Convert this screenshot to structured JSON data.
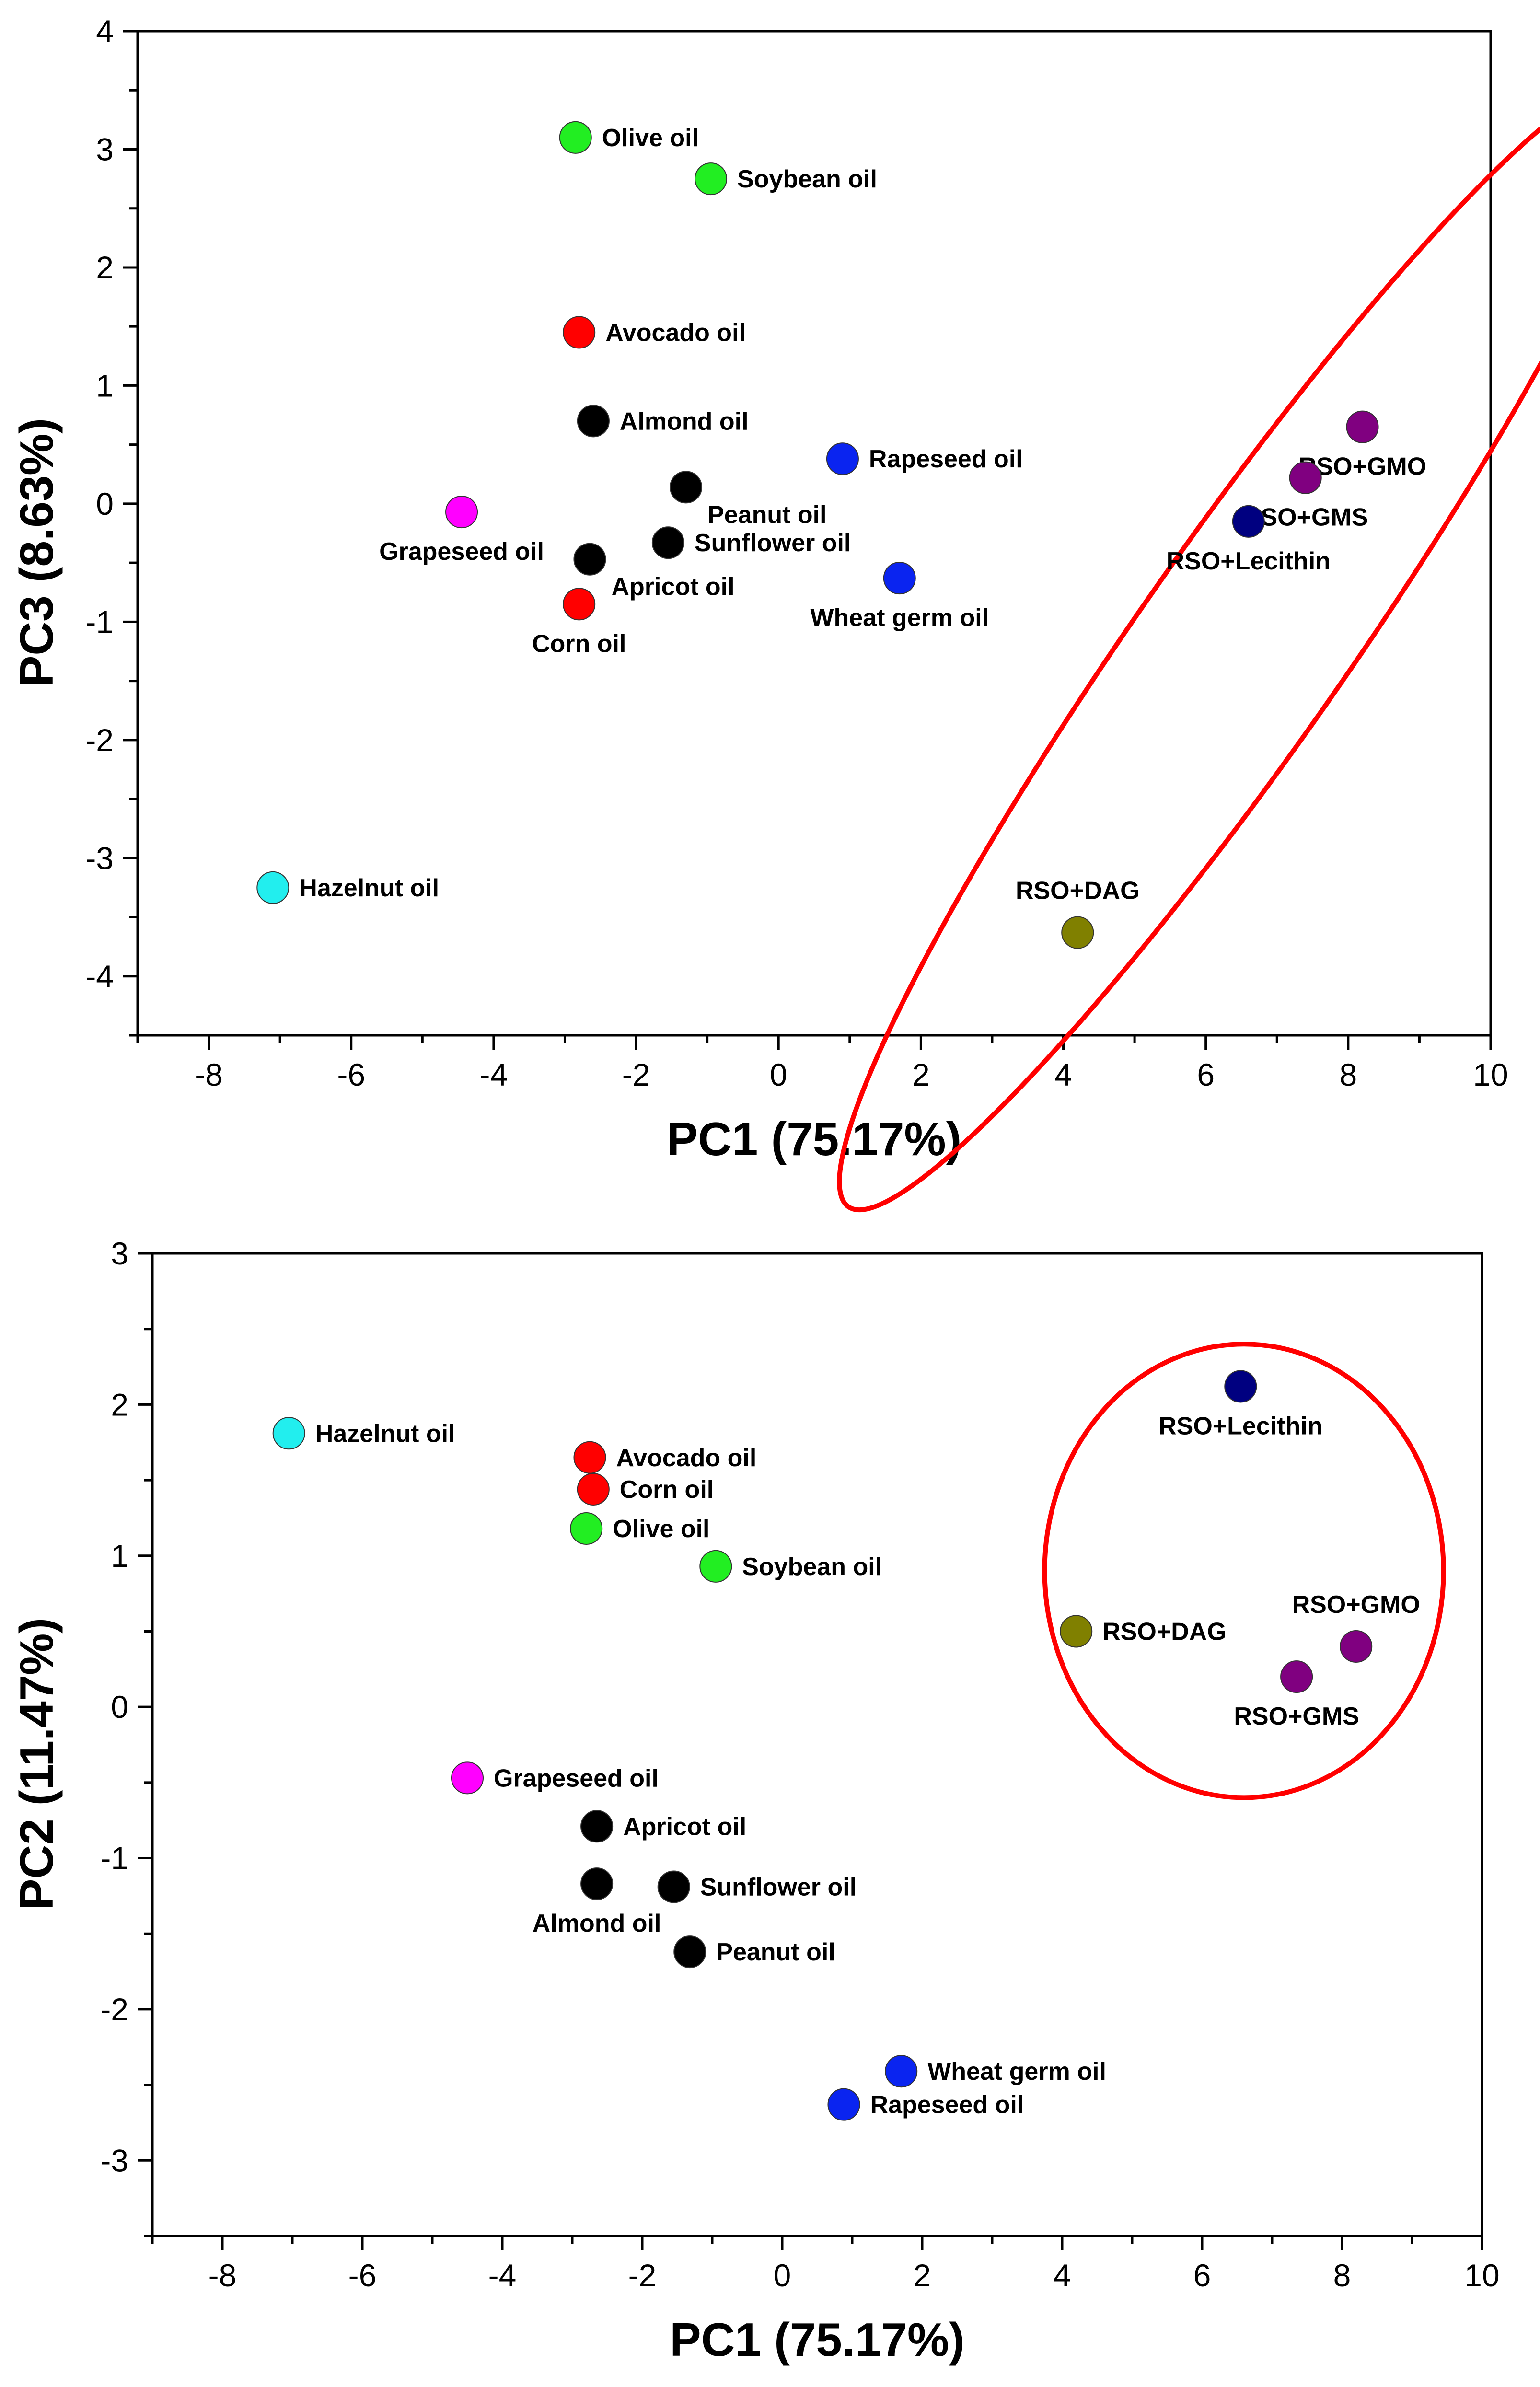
{
  "chart_data": [
    {
      "type": "scatter",
      "id": "pc1-pc3",
      "title": "",
      "xlabel": "PC1 (75.17%)",
      "ylabel": "PC3 (8.63%)",
      "xlim": [
        -9,
        10
      ],
      "ylim": [
        -4.5,
        4
      ],
      "xticks": [
        -8,
        -6,
        -4,
        -2,
        0,
        2,
        4,
        6,
        8,
        10
      ],
      "yticks": [
        4,
        3,
        2,
        1,
        0,
        -1,
        -2,
        -3,
        -4
      ],
      "grid": false,
      "points": [
        {
          "label": "Olive oil",
          "x": -2.85,
          "y": 3.1,
          "color": "#22ee22",
          "label_pos": "right"
        },
        {
          "label": "Soybean oil",
          "x": -0.95,
          "y": 2.75,
          "color": "#22ee22",
          "label_pos": "right"
        },
        {
          "label": "Avocado oil",
          "x": -2.8,
          "y": 1.45,
          "color": "#ff0000",
          "label_pos": "right"
        },
        {
          "label": "Almond oil",
          "x": -2.6,
          "y": 0.7,
          "color": "#000000",
          "label_pos": "right"
        },
        {
          "label": "Rapeseed oil",
          "x": 0.9,
          "y": 0.38,
          "color": "#0a24f0",
          "label_pos": "right"
        },
        {
          "label": "Peanut oil",
          "x": -1.3,
          "y": 0.14,
          "color": "#000000",
          "label_pos": "below-right"
        },
        {
          "label": "Grapeseed oil",
          "x": -4.45,
          "y": -0.07,
          "color": "#ff00ff",
          "label_pos": "below"
        },
        {
          "label": "Sunflower oil",
          "x": -1.55,
          "y": -0.33,
          "color": "#000000",
          "label_pos": "right"
        },
        {
          "label": "Apricot oil",
          "x": -2.65,
          "y": -0.47,
          "color": "#000000",
          "label_pos": "below-right"
        },
        {
          "label": "Wheat germ oil",
          "x": 1.7,
          "y": -0.63,
          "color": "#0a24f0",
          "label_pos": "below"
        },
        {
          "label": "Corn oil",
          "x": -2.8,
          "y": -0.85,
          "color": "#ff0000",
          "label_pos": "below"
        },
        {
          "label": "Hazelnut oil",
          "x": -7.1,
          "y": -3.25,
          "color": "#22eeee",
          "label_pos": "right"
        },
        {
          "label": "RSO+DAG",
          "x": 4.2,
          "y": -3.63,
          "color": "#808000",
          "label_pos": "above"
        },
        {
          "label": "RSO+GMO",
          "x": 8.2,
          "y": 0.65,
          "color": "#800080",
          "label_pos": "below"
        },
        {
          "label": "RSO+GMS",
          "x": 7.4,
          "y": 0.22,
          "color": "#800080",
          "label_pos": "below"
        },
        {
          "label": "RSO+Lecithin",
          "x": 6.6,
          "y": -0.15,
          "color": "#000080",
          "label_pos": "below"
        }
      ],
      "ellipse": {
        "cx": 6.5,
        "cy": -1.2,
        "rx": 1.45,
        "ry": 5.8,
        "rotate_deg": 35,
        "color": "#ff0000"
      }
    },
    {
      "type": "scatter",
      "id": "pc1-pc2",
      "title": "",
      "xlabel": "PC1 (75.17%)",
      "ylabel": "PC2 (11.47%)",
      "xlim": [
        -9,
        10
      ],
      "ylim": [
        -3.5,
        3
      ],
      "xticks": [
        -8,
        -6,
        -4,
        -2,
        0,
        2,
        4,
        6,
        8,
        10
      ],
      "yticks": [
        3,
        2,
        1,
        0,
        -1,
        -2,
        -3
      ],
      "grid": false,
      "points": [
        {
          "label": "RSO+Lecithin",
          "x": 6.55,
          "y": 2.12,
          "color": "#000080",
          "label_pos": "below"
        },
        {
          "label": "Hazelnut oil",
          "x": -7.05,
          "y": 1.81,
          "color": "#22eeee",
          "label_pos": "right"
        },
        {
          "label": "Avocado oil",
          "x": -2.75,
          "y": 1.65,
          "color": "#ff0000",
          "label_pos": "right"
        },
        {
          "label": "Corn oil",
          "x": -2.7,
          "y": 1.44,
          "color": "#ff0000",
          "label_pos": "right"
        },
        {
          "label": "Olive oil",
          "x": -2.8,
          "y": 1.18,
          "color": "#22ee22",
          "label_pos": "right"
        },
        {
          "label": "Soybean oil",
          "x": -0.95,
          "y": 0.93,
          "color": "#22ee22",
          "label_pos": "right"
        },
        {
          "label": "RSO+DAG",
          "x": 4.2,
          "y": 0.5,
          "color": "#808000",
          "label_pos": "right"
        },
        {
          "label": "RSO+GMO",
          "x": 8.2,
          "y": 0.4,
          "color": "#800080",
          "label_pos": "above"
        },
        {
          "label": "RSO+GMS",
          "x": 7.35,
          "y": 0.2,
          "color": "#800080",
          "label_pos": "below"
        },
        {
          "label": "Grapeseed oil",
          "x": -4.5,
          "y": -0.47,
          "color": "#ff00ff",
          "label_pos": "right"
        },
        {
          "label": "Apricot oil",
          "x": -2.65,
          "y": -0.79,
          "color": "#000000",
          "label_pos": "right"
        },
        {
          "label": "Almond oil",
          "x": -2.65,
          "y": -1.17,
          "color": "#000000",
          "label_pos": "below"
        },
        {
          "label": "Sunflower oil",
          "x": -1.55,
          "y": -1.19,
          "color": "#000000",
          "label_pos": "right"
        },
        {
          "label": "Peanut oil",
          "x": -1.32,
          "y": -1.62,
          "color": "#000000",
          "label_pos": "right"
        },
        {
          "label": "Wheat germ oil",
          "x": 1.7,
          "y": -2.41,
          "color": "#0a24f0",
          "label_pos": "right"
        },
        {
          "label": "Rapeseed oil",
          "x": 0.88,
          "y": -2.63,
          "color": "#0a24f0",
          "label_pos": "right"
        }
      ],
      "ellipse": {
        "cx": 6.6,
        "cy": 0.9,
        "rx": 2.85,
        "ry": 1.5,
        "rotate_deg": 0,
        "color": "#ff0000"
      }
    }
  ]
}
